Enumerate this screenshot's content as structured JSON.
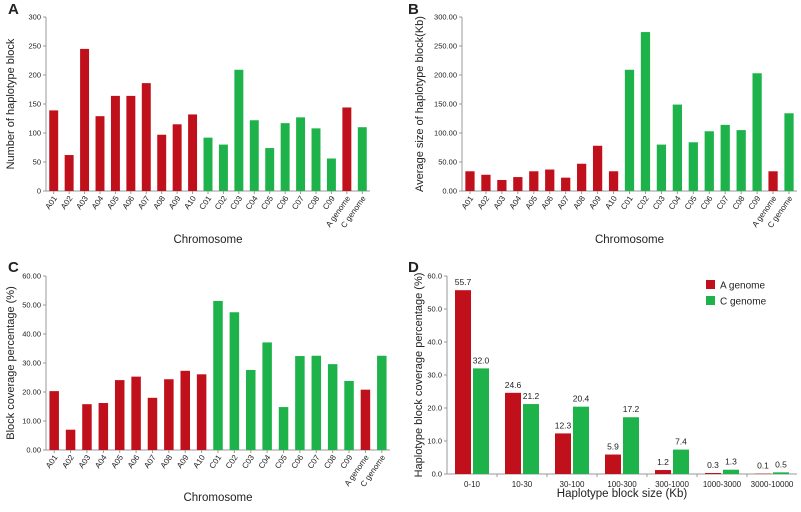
{
  "colors": {
    "a_genome": "#c0101c",
    "c_genome": "#1db34a",
    "axis": "#999999"
  },
  "chart_data": [
    {
      "panel": "A",
      "type": "bar",
      "categories": [
        "A01",
        "A02",
        "A03",
        "A04",
        "A05",
        "A06",
        "A07",
        "A08",
        "A09",
        "A10",
        "C01",
        "C02",
        "C03",
        "C04",
        "C05",
        "C06",
        "C07",
        "C08",
        "C09",
        "A genome",
        "C genome"
      ],
      "values": [
        139,
        62,
        245,
        129,
        164,
        164,
        186,
        97,
        115,
        132,
        92,
        80,
        209,
        122,
        74,
        117,
        127,
        108,
        56,
        144,
        110
      ],
      "series_colors": [
        "a",
        "a",
        "a",
        "a",
        "a",
        "a",
        "a",
        "a",
        "a",
        "a",
        "c",
        "c",
        "c",
        "c",
        "c",
        "c",
        "c",
        "c",
        "c",
        "a",
        "c"
      ],
      "xlabel": "Chromosome",
      "ylabel": "Number of haplotype block",
      "ylim": [
        0,
        300
      ],
      "yticks": [
        0,
        50,
        100,
        150,
        200,
        250,
        300
      ],
      "ytick_labels": [
        "0",
        "50",
        "100",
        "150",
        "200",
        "250",
        "300"
      ],
      "grid": false
    },
    {
      "panel": "B",
      "type": "bar",
      "categories": [
        "A01",
        "A02",
        "A03",
        "A04",
        "A05",
        "A06",
        "A07",
        "A08",
        "A09",
        "A10",
        "C01",
        "C02",
        "C03",
        "C04",
        "C05",
        "C06",
        "C07",
        "C08",
        "C09",
        "A genome",
        "C genome"
      ],
      "values": [
        34,
        28,
        19,
        24,
        34,
        37,
        23,
        47,
        78,
        34,
        209,
        274,
        80,
        149,
        84,
        103,
        114,
        105,
        203,
        34,
        134
      ],
      "series_colors": [
        "a",
        "a",
        "a",
        "a",
        "a",
        "a",
        "a",
        "a",
        "a",
        "a",
        "c",
        "c",
        "c",
        "c",
        "c",
        "c",
        "c",
        "c",
        "c",
        "a",
        "c"
      ],
      "xlabel": "Chromosome",
      "ylabel": "Average size of haplotype block(Kb)",
      "ylim": [
        0,
        300
      ],
      "yticks": [
        0,
        50,
        100,
        150,
        200,
        250,
        300
      ],
      "ytick_labels": [
        "0.00",
        "50.00",
        "100.00",
        "150.00",
        "200.00",
        "250.00",
        "300.00"
      ],
      "grid": false
    },
    {
      "panel": "C",
      "type": "bar",
      "categories": [
        "A01",
        "A02",
        "A03",
        "A04",
        "A05",
        "A06",
        "A07",
        "A08",
        "A09",
        "A10",
        "C01",
        "C02",
        "C03",
        "C04",
        "C05",
        "C06",
        "C07",
        "C08",
        "C09",
        "A genome",
        "C genome"
      ],
      "values": [
        20.3,
        7.0,
        15.8,
        16.2,
        24.1,
        25.3,
        18.0,
        24.4,
        27.3,
        26.1,
        51.4,
        47.5,
        27.6,
        37.1,
        14.8,
        32.4,
        32.5,
        29.6,
        23.8,
        20.8,
        32.5
      ],
      "series_colors": [
        "a",
        "a",
        "a",
        "a",
        "a",
        "a",
        "a",
        "a",
        "a",
        "a",
        "c",
        "c",
        "c",
        "c",
        "c",
        "c",
        "c",
        "c",
        "c",
        "a",
        "c"
      ],
      "xlabel": "Chromosome",
      "ylabel": "Block coverage percentage (%)",
      "ylim": [
        0,
        60
      ],
      "yticks": [
        0,
        10,
        20,
        30,
        40,
        50,
        60
      ],
      "ytick_labels": [
        "0.00",
        "10.00",
        "20.00",
        "30.00",
        "40.00",
        "50.00",
        "60.00"
      ],
      "grid": false
    },
    {
      "panel": "D",
      "type": "bar",
      "categories": [
        "0-10",
        "10-30",
        "30-100",
        "100-300",
        "300-1000",
        "1000-3000",
        "3000-10000"
      ],
      "series": [
        {
          "name": "A genome",
          "color_key": "a",
          "values": [
            55.7,
            24.6,
            12.3,
            5.9,
            1.2,
            0.3,
            0.1
          ],
          "labels": [
            "55.7",
            "24.6",
            "12.3",
            "5.9",
            "1.2",
            "0.3",
            "0.1"
          ]
        },
        {
          "name": "C genome",
          "color_key": "c",
          "values": [
            32.0,
            21.2,
            20.4,
            17.2,
            7.4,
            1.3,
            0.5
          ],
          "labels": [
            "32.0",
            "21.2",
            "20.4",
            "17.2",
            "7.4",
            "1.3",
            "0.5"
          ]
        }
      ],
      "xlabel": "Haplotype block size (Kb)",
      "ylabel": "Haplotype block coverage percentage (%)",
      "ylim": [
        0,
        60
      ],
      "yticks": [
        0,
        10,
        20,
        30,
        40,
        50,
        60
      ],
      "ytick_labels": [
        "0.0",
        "10.0",
        "20.0",
        "30.0",
        "40.0",
        "50.0",
        "60.0"
      ],
      "legend_position": "top-right",
      "grid": false
    }
  ]
}
